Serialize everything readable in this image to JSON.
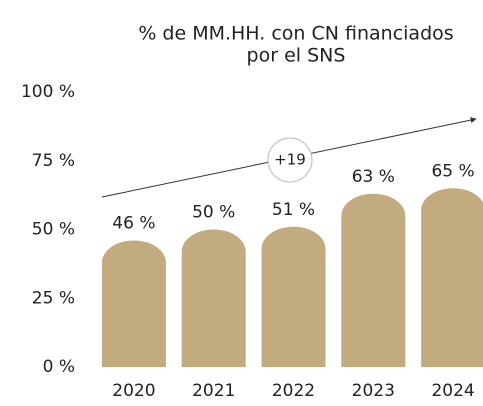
{
  "chart_data": {
    "type": "bar",
    "title": [
      "% de MM.HH. con CN financiados",
      "por el SNS"
    ],
    "categories": [
      "2020",
      "2021",
      "2022",
      "2023",
      "2024"
    ],
    "values": [
      46,
      50,
      51,
      63,
      65
    ],
    "value_labels": [
      "46 %",
      "50 %",
      "51 %",
      "63 %",
      "65 %"
    ],
    "color": "#c2ab7e",
    "ylim": [
      0,
      100
    ],
    "yticks": [
      {
        "value": 0,
        "label": "0 %"
      },
      {
        "value": 25,
        "label": "25 %"
      },
      {
        "value": 50,
        "label": "50 %"
      },
      {
        "value": 75,
        "label": "75 %"
      },
      {
        "value": 100,
        "label": "100 %"
      }
    ],
    "grid": false,
    "annotation": "+19"
  }
}
